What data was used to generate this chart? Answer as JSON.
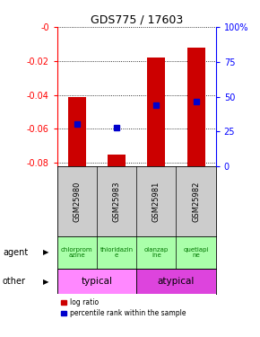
{
  "title": "GDS775 / 17603",
  "samples": [
    "GSM25980",
    "GSM25983",
    "GSM25981",
    "GSM25982"
  ],
  "bar_tops": [
    -0.041,
    -0.075,
    -0.018,
    -0.012
  ],
  "bar_bottom": -0.082,
  "blue_values": [
    -0.057,
    -0.059,
    -0.046,
    -0.044
  ],
  "ylim_left": [
    -0.082,
    0.0
  ],
  "ylim_right": [
    0,
    100
  ],
  "yticks_left": [
    0.0,
    -0.02,
    -0.04,
    -0.06,
    -0.08
  ],
  "ytick_labels_left": [
    "-0",
    "-0.02",
    "-0.04",
    "-0.06",
    "-0.08"
  ],
  "yticks_right": [
    0,
    25,
    50,
    75,
    100
  ],
  "ytick_labels_right": [
    "0",
    "25",
    "50",
    "75",
    "100%"
  ],
  "agent_labels": [
    "chlorprom\nazine",
    "thioridazin\ne",
    "olanzap\nine",
    "quetiapi\nne"
  ],
  "other_labels": [
    "typical",
    "atypical"
  ],
  "other_spans": [
    2,
    2
  ],
  "other_colors": [
    "#ff88ff",
    "#dd44dd"
  ],
  "agent_color": "#aaffaa",
  "agent_text_color": "#007700",
  "bar_color": "#cc0000",
  "blue_color": "#0000cc",
  "sample_bg": "#cccccc",
  "legend_red": "log ratio",
  "legend_blue": "percentile rank within the sample",
  "bg_color": "#ffffff"
}
